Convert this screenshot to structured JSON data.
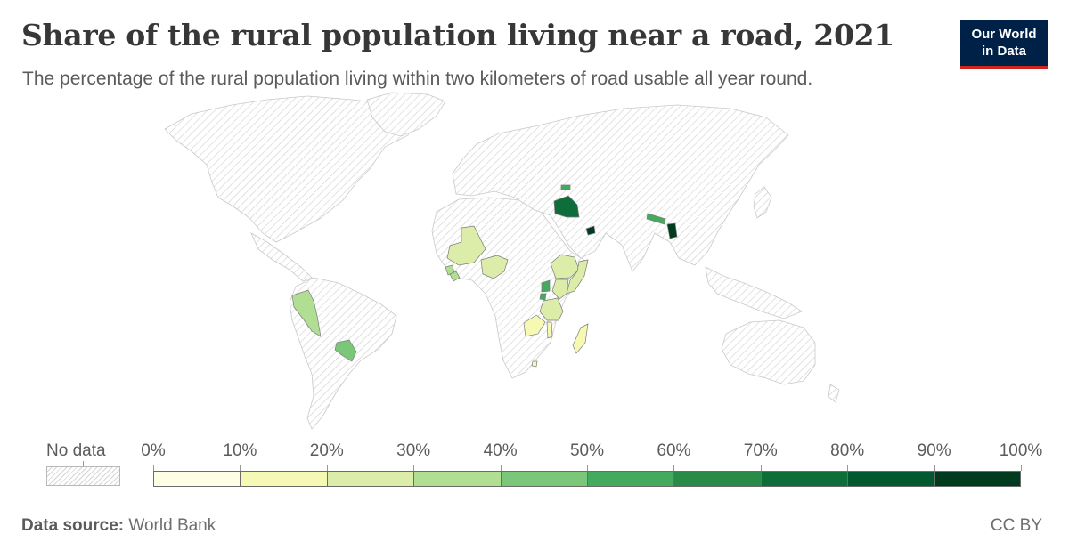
{
  "title": "Share of the rural population living near a road, 2021",
  "subtitle": "The percentage of the rural population living within two kilometers of road usable all year round.",
  "logo": {
    "line1": "Our World",
    "line2": "in Data"
  },
  "legend": {
    "no_data_label": "No data",
    "ticks": [
      "0%",
      "10%",
      "20%",
      "30%",
      "40%",
      "50%",
      "60%",
      "70%",
      "80%",
      "90%",
      "100%"
    ],
    "bin_colors": [
      "#fefee4",
      "#f5f9b3",
      "#dcedaa",
      "#b0de93",
      "#7bc77a",
      "#44ab5e",
      "#2a8a48",
      "#0d6e3a",
      "#02582f",
      "#003b20"
    ]
  },
  "footer": {
    "source_label": "Data source:",
    "source_value": "World Bank",
    "license": "CC BY"
  },
  "countries": [
    {
      "name": "Peru",
      "value": 35
    },
    {
      "name": "Paraguay",
      "value": 45
    },
    {
      "name": "Mali",
      "value": 25
    },
    {
      "name": "Nigeria",
      "value": 25
    },
    {
      "name": "Sierra Leone",
      "value": 35
    },
    {
      "name": "Liberia",
      "value": 35
    },
    {
      "name": "Ethiopia",
      "value": 25
    },
    {
      "name": "Somalia",
      "value": 25
    },
    {
      "name": "Kenya",
      "value": 25
    },
    {
      "name": "Uganda",
      "value": 55
    },
    {
      "name": "Rwanda",
      "value": 55
    },
    {
      "name": "Tanzania",
      "value": 25
    },
    {
      "name": "Zambia",
      "value": 15
    },
    {
      "name": "Malawi",
      "value": 15
    },
    {
      "name": "Madagascar",
      "value": 15
    },
    {
      "name": "Eswatini",
      "value": 15
    },
    {
      "name": "Iraq",
      "value": 75
    },
    {
      "name": "Georgia",
      "value": 55
    },
    {
      "name": "United Arab Emirates",
      "value": 95
    },
    {
      "name": "Nepal",
      "value": 55
    },
    {
      "name": "Bangladesh",
      "value": 95
    }
  ]
}
